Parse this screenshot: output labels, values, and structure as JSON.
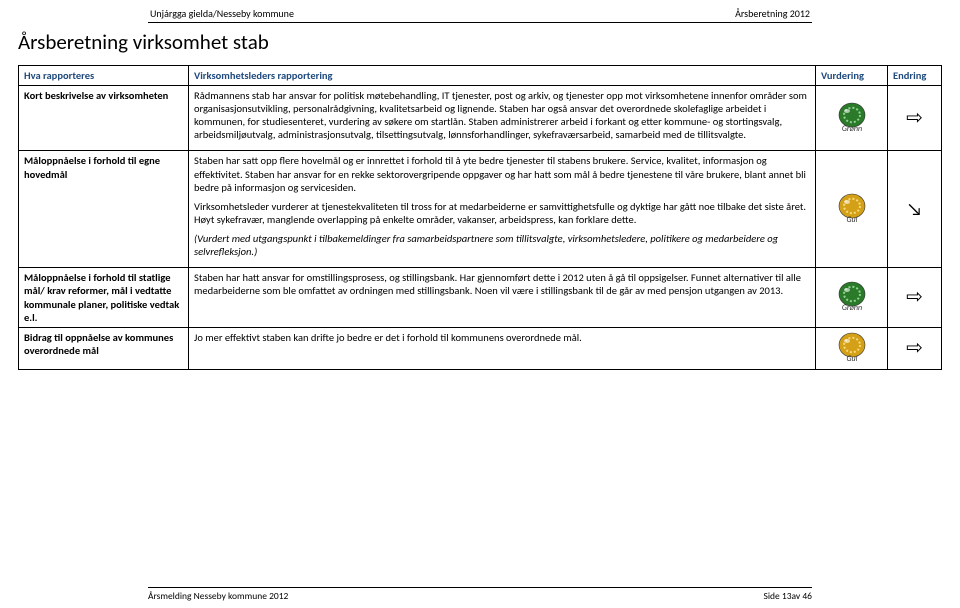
{
  "header": {
    "left": "Unjárgga gielda/Nesseby kommune",
    "right": "Årsberetning 2012"
  },
  "title": "Årsberetning virksomhet stab",
  "table": {
    "headers": {
      "c1": "Hva rapporteres",
      "c2": "Virksomhetsleders rapportering",
      "c3": "Vurdering",
      "c4": "Endring"
    },
    "rows": [
      {
        "label": "Kort beskrivelse av virksomheten",
        "p1": "Rådmannens stab har ansvar for politisk møtebehandling, IT tjenester, post og arkiv, og tjenester opp mot virksomhetene innenfor områder som organisasjonsutvikling, personalrådgivning, kvalitetsarbeid  og lignende.  Staben har også ansvar  det overordnede skolefaglige arbeidet i kommunen,  for studiesenteret, vurdering av søkere om startlån. Staben administrerer arbeid i forkant og etter kommune- og stortingsvalg, arbeidsmiljøutvalg, administrasjonsutvalg, tilsettingsutvalg, lønnsforhandlinger, sykefraværsarbeid, samarbeid med de tillitsvalgte.",
        "badge": "gronn",
        "arrow": "right"
      },
      {
        "label": "Måloppnåelse i forhold til egne hovedmål",
        "p1": "Staben har satt opp flere hovelmål og er innrettet i forhold til å yte bedre tjenester til stabens brukere.  Service, kvalitet, informasjon og effektivitet. Staben har ansvar for en rekke sektorovergripende oppgaver og har hatt som mål å bedre tjenestene til våre brukere, blant annet bli bedre på informasjon og servicesiden.",
        "p2": "Virksomhetsleder vurderer at tjenestekvaliteten til tross for at medarbeiderne er samvittighetsfulle og dyktige har gått noe tilbake det siste året. Høyt sykefravær, manglende overlapping på enkelte områder, vakanser, arbeidspress, kan forklare dette.",
        "p3": "(Vurdert med utgangspunkt i tilbakemeldinger fra samarbeidspartnere  som tillitsvalgte, virksomhetsledere, politikere og medarbeidere og selvrefleksjon.)",
        "badge": "gul",
        "arrow": "downright"
      },
      {
        "label": "Måloppnåelse i forhold til statlige mål/ krav reformer, mål i vedtatte kommunale planer, politiske vedtak e.l.",
        "p1": "Staben har hatt ansvar for omstillingsprosess, og stillingsbank.  Har gjennomført dette i 2012 uten å gå til oppsigelser. Funnet alternativer til alle medarbeiderne som ble omfattet av ordningen med stillingsbank. Noen vil være i stillingsbank til de går av med pensjon utgangen av 2013.",
        "badge": "gronn",
        "arrow": "right"
      },
      {
        "label": "Bidrag til oppnåelse av kommunes overordnede mål",
        "p1": "Jo mer effektivt staben kan drifte jo bedre er det i forhold til kommunens overordnede mål.",
        "badge": "gul",
        "arrow": "right"
      }
    ]
  },
  "badge_styles": {
    "gronn": {
      "bg": "#2a7a2a",
      "ring": "#8fd18f",
      "label": "Grønn"
    },
    "gul": {
      "bg": "#d4a017",
      "ring": "#f5d97a",
      "label": "Gul"
    }
  },
  "footer": {
    "left": "Årsmelding Nesseby kommune 2012",
    "right": "Side 13av 46"
  }
}
